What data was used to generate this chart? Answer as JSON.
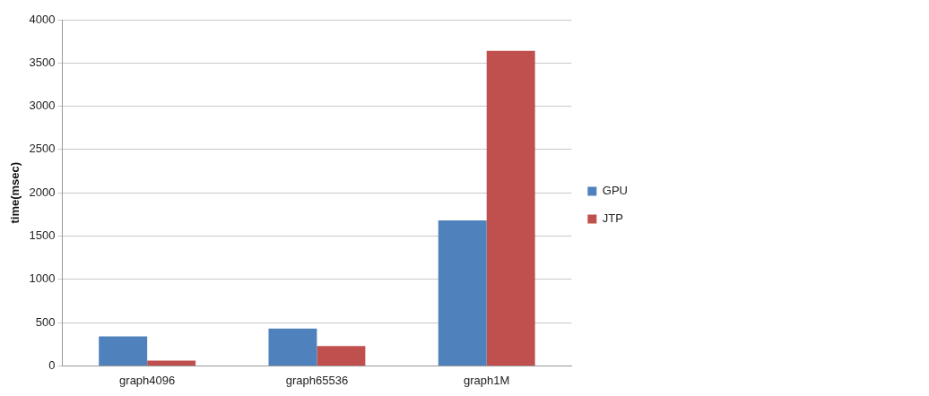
{
  "chart_data": {
    "type": "bar",
    "ylabel": "time(msec)",
    "categories": [
      "graph4096",
      "graph65536",
      "graph1M"
    ],
    "series": [
      {
        "name": "GPU",
        "color": "#4f81bd",
        "values": [
          340,
          430,
          1680
        ]
      },
      {
        "name": "JTP",
        "color": "#c0504d",
        "values": [
          60,
          230,
          3640
        ]
      }
    ],
    "ylim": [
      0,
      4000
    ],
    "yticks": [
      0,
      500,
      1000,
      1500,
      2000,
      2500,
      3000,
      3500,
      4000
    ],
    "grid": "y",
    "legend": "right"
  }
}
